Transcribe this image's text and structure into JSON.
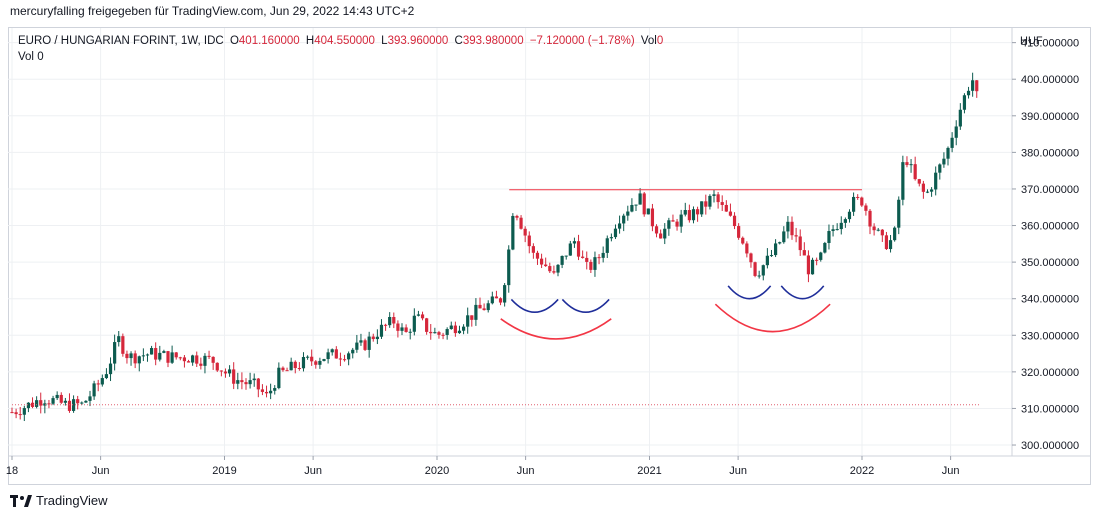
{
  "header": {
    "text": "mercuryfalling freigegeben für TradingView.com, Jun 29, 2022 14:43 UTC+2"
  },
  "legend": {
    "symbol": "EURO / HUNGARIAN FORINT, 1W, IDC",
    "o_label": "O",
    "o_value": "401.160000",
    "h_label": "H",
    "h_value": "404.550000",
    "l_label": "L",
    "l_value": "393.960000",
    "c_label": "C",
    "c_value": "393.980000",
    "change": "−7.120000 (−1.78%)",
    "vol_label": "Vol",
    "vol_value": "0",
    "vol2_label": "Vol",
    "vol2_value": "0"
  },
  "footer": {
    "brand": "TradingView"
  },
  "colors": {
    "up": "#26a69a",
    "upDark": "#0c5b4f",
    "down": "#d5273b",
    "accent_red": "#f23645",
    "accent_blue": "#1f2e9a",
    "dotted": "#e06070"
  },
  "chart_data": {
    "type": "candlestick",
    "currency_label": "HUF",
    "y_ticks": [
      "410.000000",
      "400.000000",
      "390.000000",
      "380.000000",
      "370.000000",
      "360.000000",
      "350.000000",
      "340.000000",
      "330.000000",
      "320.000000",
      "310.000000",
      "300.000000"
    ],
    "y_tick_values": [
      410,
      400,
      390,
      380,
      370,
      360,
      350,
      340,
      330,
      320,
      310,
      300
    ],
    "ylim": [
      297,
      414
    ],
    "x_ticks": [
      {
        "label": "18",
        "t": 0
      },
      {
        "label": "Jun",
        "t": 0.417
      },
      {
        "label": "2019",
        "t": 1
      },
      {
        "label": "Jun",
        "t": 1.417
      },
      {
        "label": "2020",
        "t": 2
      },
      {
        "label": "Jun",
        "t": 2.417
      },
      {
        "label": "2021",
        "t": 3
      },
      {
        "label": "Jun",
        "t": 3.417
      },
      {
        "label": "2022",
        "t": 4
      },
      {
        "label": "Jun",
        "t": 4.417
      }
    ],
    "price_path": [
      [
        0.0,
        309
      ],
      [
        0.08,
        311
      ],
      [
        0.15,
        313
      ],
      [
        0.25,
        311
      ],
      [
        0.33,
        311
      ],
      [
        0.4,
        316
      ],
      [
        0.45,
        321
      ],
      [
        0.5,
        329
      ],
      [
        0.55,
        324
      ],
      [
        0.65,
        325
      ],
      [
        0.75,
        324
      ],
      [
        0.85,
        324
      ],
      [
        0.95,
        323
      ],
      [
        1.0,
        320
      ],
      [
        1.05,
        318
      ],
      [
        1.15,
        316
      ],
      [
        1.2,
        313
      ],
      [
        1.25,
        319
      ],
      [
        1.35,
        322
      ],
      [
        1.45,
        324
      ],
      [
        1.55,
        325
      ],
      [
        1.65,
        327
      ],
      [
        1.72,
        331
      ],
      [
        1.8,
        334
      ],
      [
        1.85,
        330
      ],
      [
        1.9,
        335
      ],
      [
        1.95,
        332
      ],
      [
        2.0,
        330
      ],
      [
        2.1,
        333
      ],
      [
        2.2,
        337
      ],
      [
        2.3,
        340
      ],
      [
        2.33,
        349
      ],
      [
        2.36,
        366
      ],
      [
        2.4,
        360
      ],
      [
        2.45,
        352
      ],
      [
        2.5,
        350
      ],
      [
        2.55,
        346
      ],
      [
        2.6,
        352
      ],
      [
        2.65,
        356
      ],
      [
        2.7,
        348
      ],
      [
        2.75,
        350
      ],
      [
        2.8,
        356
      ],
      [
        2.85,
        362
      ],
      [
        2.9,
        365
      ],
      [
        2.95,
        368
      ],
      [
        3.0,
        362
      ],
      [
        3.05,
        358
      ],
      [
        3.1,
        360
      ],
      [
        3.15,
        362
      ],
      [
        3.2,
        363
      ],
      [
        3.25,
        365
      ],
      [
        3.3,
        368
      ],
      [
        3.35,
        364
      ],
      [
        3.4,
        360
      ],
      [
        3.45,
        355
      ],
      [
        3.5,
        347
      ],
      [
        3.55,
        350
      ],
      [
        3.6,
        354
      ],
      [
        3.65,
        360
      ],
      [
        3.7,
        355
      ],
      [
        3.75,
        348
      ],
      [
        3.8,
        350
      ],
      [
        3.85,
        358
      ],
      [
        3.9,
        362
      ],
      [
        3.95,
        366
      ],
      [
        4.0,
        367
      ],
      [
        4.05,
        360
      ],
      [
        4.1,
        355
      ],
      [
        4.15,
        356
      ],
      [
        4.2,
        380
      ],
      [
        4.25,
        372
      ],
      [
        4.3,
        368
      ],
      [
        4.35,
        374
      ],
      [
        4.4,
        380
      ],
      [
        4.45,
        390
      ],
      [
        4.5,
        398
      ],
      [
        4.52,
        400
      ],
      [
        4.54,
        395
      ]
    ],
    "candle_count": 236,
    "resistance_line": {
      "t_start": 2.34,
      "t_end": 4.0,
      "value": 369.8
    },
    "support_dotted": {
      "t_start": 0.0,
      "t_end": 4.56,
      "value": 311
    },
    "arcs": [
      {
        "color": "red",
        "t_center": 2.56,
        "t_half": 0.26,
        "top": 334.5,
        "depth": 5.5
      },
      {
        "color": "blue",
        "t_center": 2.46,
        "t_half": 0.11,
        "top": 339.8,
        "depth": 3.5
      },
      {
        "color": "blue",
        "t_center": 2.7,
        "t_half": 0.11,
        "top": 339.8,
        "depth": 3.5
      },
      {
        "color": "red",
        "t_center": 3.58,
        "t_half": 0.27,
        "top": 338.5,
        "depth": 7.5
      },
      {
        "color": "blue",
        "t_center": 3.47,
        "t_half": 0.1,
        "top": 343.5,
        "depth": 3.5
      },
      {
        "color": "blue",
        "t_center": 3.72,
        "t_half": 0.1,
        "top": 343.5,
        "depth": 3.5
      }
    ]
  }
}
